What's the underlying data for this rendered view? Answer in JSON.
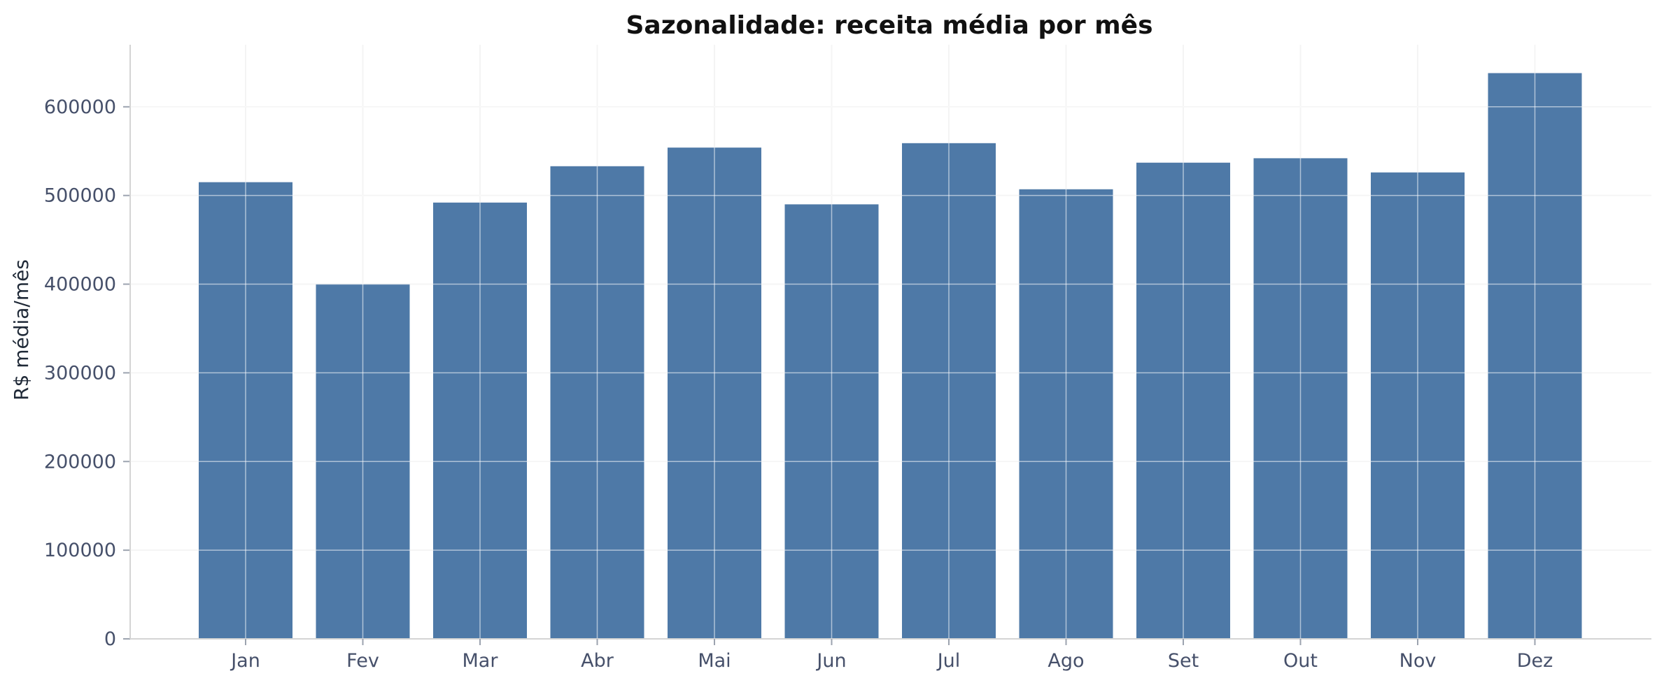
{
  "chart_data": {
    "type": "bar",
    "title": "Sazonalidade: receita média por mês",
    "xlabel": "",
    "ylabel": "R$ média/mês",
    "categories": [
      "Jan",
      "Fev",
      "Mar",
      "Abr",
      "Mai",
      "Jun",
      "Jul",
      "Ago",
      "Set",
      "Out",
      "Nov",
      "Dez"
    ],
    "values": [
      515000,
      400000,
      492000,
      533000,
      554000,
      490000,
      559000,
      507000,
      537000,
      542000,
      526000,
      638000
    ],
    "ylim": [
      0,
      670000
    ],
    "yticks": [
      0,
      100000,
      200000,
      300000,
      400000,
      500000,
      600000
    ],
    "ytick_labels": [
      "0",
      "100000",
      "200000",
      "300000",
      "400000",
      "500000",
      "600000"
    ],
    "grid": true,
    "bar_color": "#4e79a7"
  }
}
